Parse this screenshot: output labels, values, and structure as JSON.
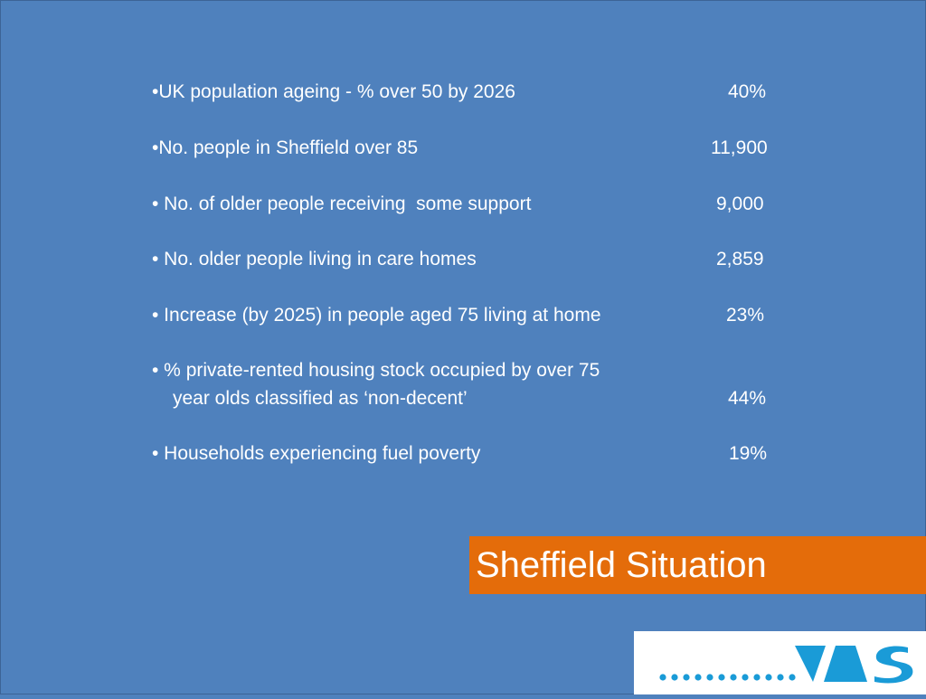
{
  "stats": [
    {
      "label": "•UK population ageing - % over 50 by 2026",
      "value": "40%"
    },
    {
      "label": "•No. people in Sheffield over 85",
      "value": "11,900"
    },
    {
      "label": "• No. of older people receiving  some support",
      "value": "9,000"
    },
    {
      "label": "• No. older people living in care homes",
      "value": "2,859"
    },
    {
      "label": "• Increase (by 2025) in people aged 75 living at home",
      "value": "23%"
    },
    {
      "label": "• % private-rented housing stock occupied by over 75",
      "label2": "year olds classified as ‘non-decent’",
      "value": "44%"
    },
    {
      "label": "• Households experiencing fuel poverty",
      "value": "19%"
    }
  ],
  "title": "Sheffield Situation",
  "logo": {
    "text": "VAS",
    "icon": "vas-logo-icon",
    "colors": {
      "dots": "#1a9bd7",
      "letters": "#1a9bd7"
    }
  },
  "colors": {
    "background": "#4f81bd",
    "title_bar": "#e46c0a",
    "text": "#ffffff"
  }
}
